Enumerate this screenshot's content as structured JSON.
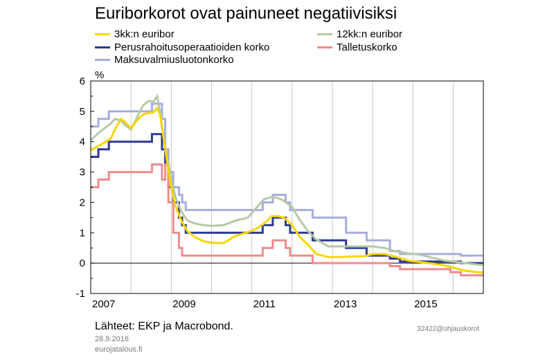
{
  "chart_data": {
    "type": "line",
    "title": "Euriborkorot ovat painuneet negatiivisiksi",
    "ylabel": "%",
    "xlabel": "",
    "xlim": [
      2007.0,
      2016.75
    ],
    "ylim": [
      -1,
      6
    ],
    "yticks": [
      -1,
      0,
      1,
      2,
      3,
      4,
      5,
      6
    ],
    "xticks": [
      2007,
      2009,
      2011,
      2013,
      2015
    ],
    "ytick_labels": [
      "-1",
      "0",
      "1",
      "2",
      "3",
      "4",
      "5",
      "6"
    ],
    "xtick_labels": [
      "2007",
      "2009",
      "2011",
      "2013",
      "2015"
    ],
    "grid": "vertical",
    "legend": [
      {
        "label": "3kk:n euribor",
        "color": "#F7D600"
      },
      {
        "label": "12kk:n euribor",
        "color": "#B5C9A6"
      },
      {
        "label": "Perusrahoitusoperaatioiden korko",
        "color": "#2B3990"
      },
      {
        "label": "Talletuskorko",
        "color": "#EE8C8C"
      },
      {
        "label": "Maksuvalmiusluotonkorko",
        "color": "#A8ACDB"
      }
    ],
    "series": [
      {
        "name": "Maksuvalmiusluotonkorko",
        "color": "#A8ACDB",
        "step": true,
        "x": [
          2007.0,
          2007.19,
          2007.45,
          2008.52,
          2008.77,
          2008.85,
          2008.93,
          2009.05,
          2009.19,
          2009.27,
          2009.36,
          2011.27,
          2011.52,
          2011.84,
          2011.95,
          2012.51,
          2013.34,
          2013.85,
          2014.43,
          2014.68,
          2016.19,
          2016.75
        ],
        "y": [
          4.5,
          4.75,
          5.0,
          5.25,
          4.75,
          3.75,
          3.0,
          2.5,
          2.25,
          2.0,
          1.75,
          2.0,
          2.25,
          2.0,
          1.75,
          1.5,
          1.0,
          0.75,
          0.4,
          0.3,
          0.25,
          0.25
        ]
      },
      {
        "name": "Perusrahoitusoperaatioiden korko",
        "color": "#2B3990",
        "step": true,
        "x": [
          2007.0,
          2007.19,
          2007.45,
          2008.52,
          2008.77,
          2008.85,
          2008.93,
          2009.05,
          2009.19,
          2009.27,
          2009.36,
          2011.27,
          2011.52,
          2011.84,
          2011.95,
          2012.51,
          2013.34,
          2013.85,
          2014.43,
          2014.68,
          2016.19,
          2016.75
        ],
        "y": [
          3.5,
          3.75,
          4.0,
          4.25,
          3.75,
          3.25,
          2.5,
          2.0,
          1.5,
          1.25,
          1.0,
          1.25,
          1.5,
          1.25,
          1.0,
          0.75,
          0.5,
          0.25,
          0.15,
          0.05,
          0.0,
          0.0
        ]
      },
      {
        "name": "Talletuskorko",
        "color": "#EE8C8C",
        "step": true,
        "x": [
          2007.0,
          2007.19,
          2007.45,
          2008.52,
          2008.77,
          2008.85,
          2008.93,
          2009.05,
          2009.19,
          2009.27,
          2009.36,
          2011.27,
          2011.52,
          2011.84,
          2011.95,
          2012.51,
          2014.43,
          2014.68,
          2015.93,
          2016.19,
          2016.75
        ],
        "y": [
          2.5,
          2.75,
          3.0,
          3.25,
          2.75,
          3.25,
          2.0,
          1.0,
          0.5,
          0.25,
          0.25,
          0.5,
          0.75,
          0.5,
          0.25,
          0.0,
          -0.1,
          -0.2,
          -0.3,
          -0.4,
          -0.4
        ]
      },
      {
        "name": "12kk:n euribor",
        "color": "#B5C9A6",
        "step": false,
        "x": [
          2007.0,
          2007.25,
          2007.5,
          2007.6,
          2007.75,
          2007.85,
          2008.0,
          2008.15,
          2008.3,
          2008.45,
          2008.55,
          2008.65,
          2008.72,
          2008.8,
          2008.9,
          2009.0,
          2009.1,
          2009.25,
          2009.4,
          2009.6,
          2009.8,
          2010.0,
          2010.3,
          2010.6,
          2010.9,
          2011.1,
          2011.3,
          2011.5,
          2011.65,
          2011.8,
          2012.0,
          2012.2,
          2012.4,
          2012.6,
          2012.9,
          2013.2,
          2013.5,
          2013.8,
          2014.0,
          2014.3,
          2014.6,
          2014.9,
          2015.2,
          2015.5,
          2015.8,
          2016.0,
          2016.3,
          2016.6,
          2016.75
        ],
        "y": [
          4.05,
          4.35,
          4.6,
          4.75,
          4.7,
          4.55,
          4.4,
          4.8,
          5.2,
          5.35,
          5.3,
          5.5,
          5.0,
          4.2,
          3.5,
          2.8,
          2.2,
          1.7,
          1.4,
          1.3,
          1.25,
          1.23,
          1.25,
          1.4,
          1.5,
          1.8,
          2.1,
          2.18,
          2.15,
          2.05,
          1.85,
          1.4,
          1.05,
          0.78,
          0.55,
          0.55,
          0.55,
          0.55,
          0.55,
          0.5,
          0.38,
          0.32,
          0.27,
          0.17,
          0.08,
          0.05,
          0.0,
          -0.05,
          -0.06
        ]
      },
      {
        "name": "3kk:n euribor",
        "color": "#F7D600",
        "step": false,
        "x": [
          2007.0,
          2007.25,
          2007.5,
          2007.6,
          2007.75,
          2007.85,
          2008.0,
          2008.15,
          2008.3,
          2008.45,
          2008.55,
          2008.65,
          2008.72,
          2008.8,
          2008.9,
          2009.0,
          2009.1,
          2009.25,
          2009.4,
          2009.6,
          2009.8,
          2010.0,
          2010.3,
          2010.6,
          2010.9,
          2011.1,
          2011.3,
          2011.5,
          2011.65,
          2011.8,
          2012.0,
          2012.2,
          2012.4,
          2012.6,
          2012.9,
          2013.2,
          2013.5,
          2013.8,
          2014.0,
          2014.3,
          2014.6,
          2014.9,
          2015.2,
          2015.5,
          2015.8,
          2016.0,
          2016.3,
          2016.6,
          2016.75
        ],
        "y": [
          3.72,
          3.9,
          4.1,
          4.4,
          4.75,
          4.65,
          4.45,
          4.7,
          4.9,
          4.95,
          4.96,
          5.1,
          4.9,
          4.2,
          3.3,
          2.5,
          1.9,
          1.4,
          1.05,
          0.85,
          0.72,
          0.67,
          0.66,
          0.9,
          1.02,
          1.12,
          1.3,
          1.55,
          1.55,
          1.5,
          1.25,
          0.85,
          0.6,
          0.3,
          0.2,
          0.2,
          0.22,
          0.23,
          0.3,
          0.3,
          0.2,
          0.08,
          0.03,
          -0.02,
          -0.08,
          -0.15,
          -0.25,
          -0.3,
          -0.31
        ]
      }
    ]
  },
  "notes": {
    "source": "Lähteet: EKP ja Macrobond.",
    "date": "28.9.2016",
    "site": "eurojatalous.fi",
    "chart_id": "32422@ohjauskorot"
  }
}
